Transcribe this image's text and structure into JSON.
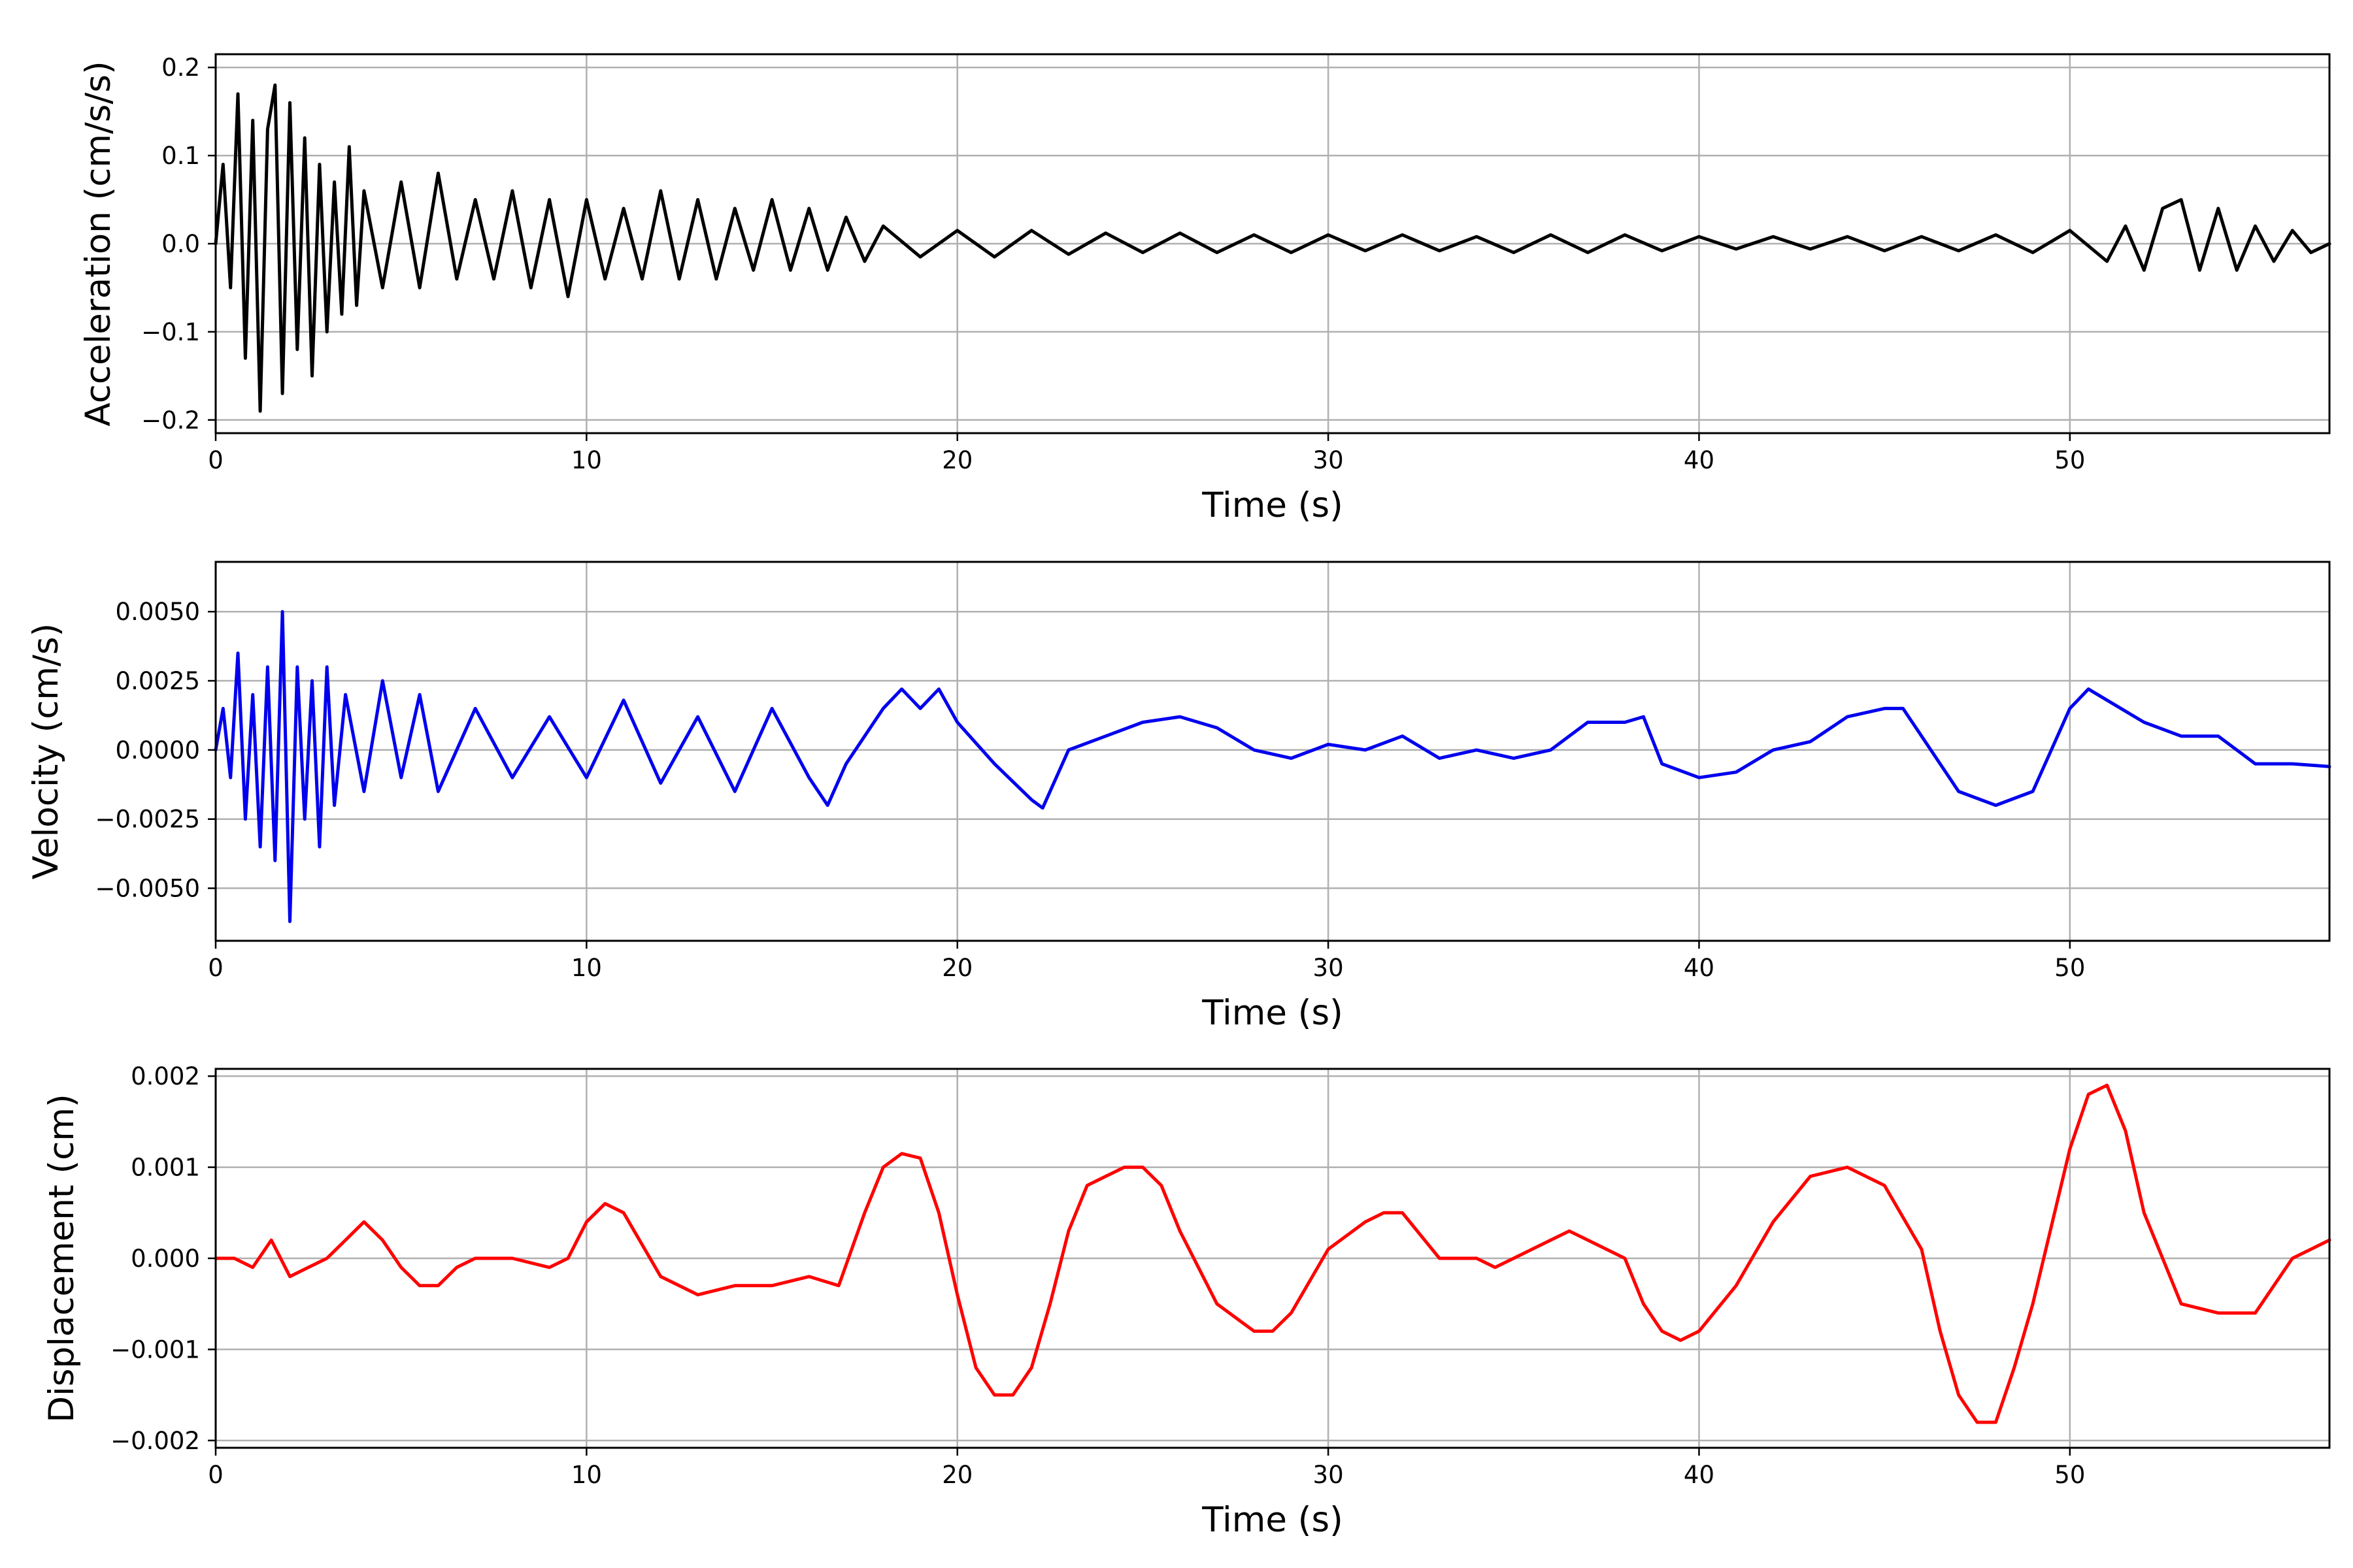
{
  "chart_data": [
    {
      "type": "line",
      "xlabel": "Time (s)",
      "ylabel": "Acceleration (cm/s/s)",
      "xlim": [
        0,
        57
      ],
      "ylim": [
        -0.215,
        0.215
      ],
      "grid": true,
      "line_color": "#000000",
      "x_ticks": [
        0,
        10,
        20,
        30,
        40,
        50
      ],
      "x_tick_labels": [
        "0",
        "10",
        "20",
        "30",
        "40",
        "50"
      ],
      "y_ticks": [
        -0.2,
        -0.1,
        0.0,
        0.1,
        0.2
      ],
      "y_tick_labels": [
        "−0.2",
        "−0.1",
        "0.0",
        "0.1",
        "0.2"
      ],
      "series": [
        {
          "x": [
            0,
            0.2,
            0.4,
            0.6,
            0.8,
            1.0,
            1.2,
            1.4,
            1.6,
            1.8,
            2.0,
            2.2,
            2.4,
            2.6,
            2.8,
            3.0,
            3.2,
            3.4,
            3.6,
            3.8,
            4.0,
            4.5,
            5.0,
            5.5,
            6.0,
            6.5,
            7.0,
            7.5,
            8.0,
            8.5,
            9.0,
            9.5,
            10.0,
            10.5,
            11.0,
            11.5,
            12.0,
            12.5,
            13.0,
            13.5,
            14.0,
            14.5,
            15.0,
            15.5,
            16.0,
            16.5,
            17.0,
            17.5,
            18.0,
            19.0,
            20.0,
            21.0,
            22.0,
            23.0,
            24.0,
            25.0,
            26.0,
            27.0,
            28.0,
            29.0,
            30.0,
            31.0,
            32.0,
            33.0,
            34.0,
            35.0,
            36.0,
            37.0,
            38.0,
            39.0,
            40.0,
            41.0,
            42.0,
            43.0,
            44.0,
            45.0,
            46.0,
            47.0,
            48.0,
            49.0,
            50.0,
            51.0,
            51.5,
            52.0,
            52.5,
            53.0,
            53.5,
            54.0,
            54.5,
            55.0,
            55.5,
            56.0,
            56.5,
            57.0
          ],
          "values": [
            0.0,
            0.09,
            -0.05,
            0.17,
            -0.13,
            0.14,
            -0.19,
            0.13,
            0.18,
            -0.17,
            0.16,
            -0.12,
            0.12,
            -0.15,
            0.09,
            -0.1,
            0.07,
            -0.08,
            0.11,
            -0.07,
            0.06,
            -0.05,
            0.07,
            -0.05,
            0.08,
            -0.04,
            0.05,
            -0.04,
            0.06,
            -0.05,
            0.05,
            -0.06,
            0.05,
            -0.04,
            0.04,
            -0.04,
            0.06,
            -0.04,
            0.05,
            -0.04,
            0.04,
            -0.03,
            0.05,
            -0.03,
            0.04,
            -0.03,
            0.03,
            -0.02,
            0.02,
            -0.015,
            0.015,
            -0.015,
            0.015,
            -0.012,
            0.012,
            -0.01,
            0.012,
            -0.01,
            0.01,
            -0.01,
            0.01,
            -0.008,
            0.01,
            -0.008,
            0.008,
            -0.01,
            0.01,
            -0.01,
            0.01,
            -0.008,
            0.008,
            -0.006,
            0.008,
            -0.006,
            0.008,
            -0.008,
            0.008,
            -0.008,
            0.01,
            -0.01,
            0.015,
            -0.02,
            0.02,
            -0.03,
            0.04,
            0.05,
            -0.03,
            0.04,
            -0.03,
            0.02,
            -0.02,
            0.015,
            -0.01,
            0.0
          ]
        }
      ]
    },
    {
      "type": "line",
      "xlabel": "Time (s)",
      "ylabel": "Velocity (cm/s)",
      "xlim": [
        0,
        57
      ],
      "ylim": [
        -0.0069,
        0.0068
      ],
      "grid": true,
      "line_color": "#0000ee",
      "x_ticks": [
        0,
        10,
        20,
        30,
        40,
        50
      ],
      "x_tick_labels": [
        "0",
        "10",
        "20",
        "30",
        "40",
        "50"
      ],
      "y_ticks": [
        -0.005,
        -0.0025,
        0.0,
        0.0025,
        0.005
      ],
      "y_tick_labels": [
        "−0.0050",
        "−0.0025",
        "0.0000",
        "0.0025",
        "0.0050"
      ],
      "series": [
        {
          "x": [
            0,
            0.2,
            0.4,
            0.6,
            0.8,
            1.0,
            1.2,
            1.4,
            1.6,
            1.8,
            2.0,
            2.2,
            2.4,
            2.6,
            2.8,
            3.0,
            3.2,
            3.5,
            4.0,
            4.5,
            5.0,
            5.5,
            6.0,
            7.0,
            8.0,
            9.0,
            10.0,
            11.0,
            12.0,
            13.0,
            14.0,
            15.0,
            16.0,
            16.5,
            17.0,
            18.0,
            18.5,
            19.0,
            19.5,
            20.0,
            21.0,
            22.0,
            22.3,
            23.0,
            24.0,
            25.0,
            26.0,
            27.0,
            28.0,
            29.0,
            30.0,
            31.0,
            32.0,
            33.0,
            34.0,
            35.0,
            36.0,
            37.0,
            38.0,
            38.5,
            39.0,
            40.0,
            41.0,
            42.0,
            43.0,
            44.0,
            45.0,
            45.5,
            46.0,
            47.0,
            48.0,
            49.0,
            50.0,
            50.5,
            51.0,
            52.0,
            53.0,
            54.0,
            55.0,
            56.0,
            57.0
          ],
          "values": [
            0.0,
            0.0015,
            -0.001,
            0.0035,
            -0.0025,
            0.002,
            -0.0035,
            0.003,
            -0.004,
            0.005,
            -0.0062,
            0.003,
            -0.0025,
            0.0025,
            -0.0035,
            0.003,
            -0.002,
            0.002,
            -0.0015,
            0.0025,
            -0.001,
            0.002,
            -0.0015,
            0.0015,
            -0.001,
            0.0012,
            -0.001,
            0.0018,
            -0.0012,
            0.0012,
            -0.0015,
            0.0015,
            -0.001,
            -0.002,
            -0.0005,
            0.0015,
            0.0022,
            0.0015,
            0.0022,
            0.001,
            -0.0005,
            -0.0018,
            -0.0021,
            0.0,
            0.0005,
            0.001,
            0.0012,
            0.0008,
            0.0,
            -0.0003,
            0.0002,
            0.0,
            0.0005,
            -0.0003,
            0.0,
            -0.0003,
            0.0,
            0.001,
            0.001,
            0.0012,
            -0.0005,
            -0.001,
            -0.0008,
            0.0,
            0.0003,
            0.0012,
            0.0015,
            0.0015,
            0.0005,
            -0.0015,
            -0.002,
            -0.0015,
            0.0015,
            0.0022,
            0.0018,
            0.001,
            0.0005,
            0.0005,
            -0.0005,
            -0.0005,
            -0.0006
          ]
        }
      ]
    },
    {
      "type": "line",
      "xlabel": "Time (s)",
      "ylabel": "Displacement (cm)",
      "xlim": [
        0,
        57
      ],
      "ylim": [
        -0.00208,
        0.00208
      ],
      "grid": true,
      "line_color": "#ff0000",
      "x_ticks": [
        0,
        10,
        20,
        30,
        40,
        50
      ],
      "x_tick_labels": [
        "0",
        "10",
        "20",
        "30",
        "40",
        "50"
      ],
      "y_ticks": [
        -0.002,
        -0.001,
        0.0,
        0.001,
        0.002
      ],
      "y_tick_labels": [
        "−0.002",
        "−0.001",
        "0.000",
        "0.001",
        "0.002"
      ],
      "series": [
        {
          "x": [
            0,
            0.5,
            1.0,
            1.5,
            2.0,
            2.5,
            3.0,
            3.5,
            4.0,
            4.5,
            5.0,
            5.5,
            6.0,
            6.5,
            7.0,
            8.0,
            9.0,
            9.5,
            10.0,
            10.5,
            11.0,
            12.0,
            13.0,
            14.0,
            15.0,
            16.0,
            16.8,
            17.5,
            18.0,
            18.5,
            19.0,
            19.5,
            20.0,
            20.5,
            21.0,
            21.5,
            22.0,
            22.5,
            23.0,
            23.5,
            24.0,
            24.5,
            25.0,
            25.5,
            26.0,
            27.0,
            28.0,
            28.5,
            29.0,
            30.0,
            31.0,
            31.5,
            32.0,
            33.0,
            34.0,
            34.5,
            35.0,
            36.0,
            36.5,
            37.0,
            38.0,
            38.5,
            39.0,
            39.5,
            40.0,
            41.0,
            42.0,
            43.0,
            44.0,
            45.0,
            46.0,
            46.5,
            47.0,
            47.5,
            48.0,
            48.5,
            49.0,
            50.0,
            50.5,
            51.0,
            51.5,
            52.0,
            53.0,
            54.0,
            54.5,
            55.0,
            56.0,
            56.5,
            57.0
          ],
          "values": [
            0.0,
            0.0,
            -0.0001,
            0.0002,
            -0.0002,
            -0.0001,
            0.0,
            0.0002,
            0.0004,
            0.0002,
            -0.0001,
            -0.0003,
            -0.0003,
            -0.0001,
            0.0,
            0.0,
            -0.0001,
            0.0,
            0.0004,
            0.0006,
            0.0005,
            -0.0002,
            -0.0004,
            -0.0003,
            -0.0003,
            -0.0002,
            -0.0003,
            0.0005,
            0.001,
            0.00115,
            0.0011,
            0.0005,
            -0.0004,
            -0.0012,
            -0.0015,
            -0.0015,
            -0.0012,
            -0.0005,
            0.0003,
            0.0008,
            0.0009,
            0.001,
            0.001,
            0.0008,
            0.0003,
            -0.0005,
            -0.0008,
            -0.0008,
            -0.0006,
            0.0001,
            0.0004,
            0.0005,
            0.0005,
            0.0,
            0.0,
            -0.0001,
            0.0,
            0.0002,
            0.0003,
            0.0002,
            0.0,
            -0.0005,
            -0.0008,
            -0.0009,
            -0.0008,
            -0.0003,
            0.0004,
            0.0009,
            0.001,
            0.0008,
            0.0001,
            -0.0008,
            -0.0015,
            -0.0018,
            -0.0018,
            -0.0012,
            -0.0005,
            0.0012,
            0.0018,
            0.0019,
            0.0014,
            0.0005,
            -0.0005,
            -0.0006,
            -0.0006,
            -0.0006,
            0.0,
            0.0001,
            0.0002
          ]
        }
      ]
    }
  ]
}
